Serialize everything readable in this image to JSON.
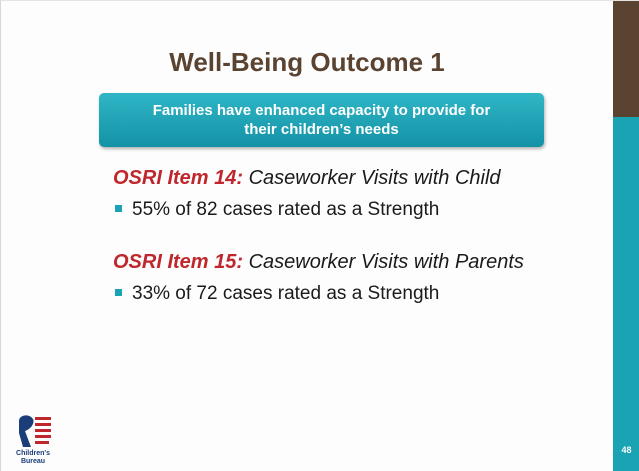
{
  "slide": {
    "title": "Well-Being Outcome 1",
    "banner": "Families have enhanced capacity to provide for their children’s needs",
    "items": [
      {
        "label": "OSRI Item 14:",
        "name": "Caseworker Visits with Child",
        "bullet": "55% of 82 cases rated as a Strength"
      },
      {
        "label": "OSRI Item 15:",
        "name": "Caseworker Visits with Parents",
        "bullet": "33% of 72 cases rated as a Strength"
      }
    ],
    "logo": [
      "Children's",
      "Bureau"
    ],
    "page_number": "48"
  }
}
